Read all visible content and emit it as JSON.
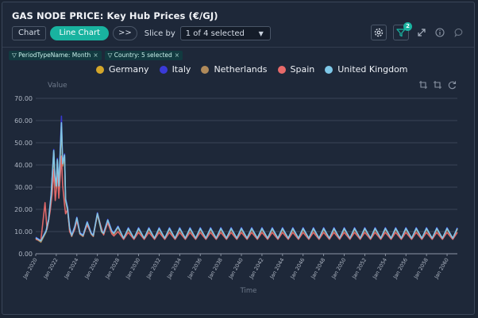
{
  "header": {
    "title": "GAS NODE PRICE: Key Hub Prices (€/GJ)"
  },
  "toolbar": {
    "chart_label": "Chart",
    "line_chart_label": "Line Chart",
    "expand_label": ">>",
    "slice_label": "Slice by",
    "slice_value": "1 of 4 selected",
    "filter_badge": "2"
  },
  "filters": [
    {
      "label": "PeriodTypeName: Month"
    },
    {
      "label": "Country: 5 selected"
    }
  ],
  "icons": {
    "settings": "gear-icon",
    "filter": "filter-icon",
    "expand": "expand-icon",
    "info": "info-icon",
    "comment": "comment-icon",
    "crop": "crop-icon",
    "crop_alt": "crop-alt-icon",
    "reset": "reset-icon"
  },
  "colors": {
    "background": "#1e2839",
    "accent": "#19b3a0",
    "grid": "#8a94a4"
  },
  "chart_data": {
    "type": "line",
    "ylabel": "Value",
    "xlabel": "Time",
    "ylim": [
      0,
      70
    ],
    "yticks": [
      "0.00",
      "10.00",
      "20.00",
      "30.00",
      "40.00",
      "50.00",
      "60.00",
      "70.00"
    ],
    "xlim": [
      2020,
      2061
    ],
    "xticks": [
      "Jan 2020",
      "Jan 2022",
      "Jan 2024",
      "Jan 2026",
      "Jan 2028",
      "Jan 2030",
      "Jan 2032",
      "Jan 2034",
      "Jan 2036",
      "Jan 2038",
      "Jan 2040",
      "Jan 2042",
      "Jan 2044",
      "Jan 2046",
      "Jan 2048",
      "Jan 2050",
      "Jan 2052",
      "Jan 2054",
      "Jan 2056",
      "Jan 2058",
      "Jan 2060"
    ],
    "grid": true,
    "legend_position": "top",
    "series": [
      {
        "name": "Germany",
        "color": "#d4a62a",
        "early_points": [
          [
            2020,
            7.0
          ],
          [
            2020.5,
            5.5
          ],
          [
            2021.0,
            10.0
          ],
          [
            2021.25,
            15.0
          ],
          [
            2021.5,
            26.0
          ],
          [
            2021.6,
            34.0
          ],
          [
            2021.75,
            46.0
          ],
          [
            2021.85,
            35.0
          ],
          [
            2022.0,
            30.0
          ],
          [
            2022.1,
            42.0
          ],
          [
            2022.25,
            30.0
          ],
          [
            2022.5,
            58.0
          ],
          [
            2022.62,
            40.0
          ],
          [
            2022.8,
            44.0
          ],
          [
            2022.9,
            24.0
          ],
          [
            2023.1,
            20.0
          ],
          [
            2023.3,
            11.0
          ],
          [
            2023.5,
            8.0
          ],
          [
            2023.8,
            12.0
          ],
          [
            2024.0,
            16.0
          ],
          [
            2024.3,
            9.0
          ],
          [
            2024.6,
            8.0
          ],
          [
            2025.0,
            14.0
          ],
          [
            2025.4,
            9.0
          ],
          [
            2025.6,
            8.0
          ],
          [
            2026.0,
            18.0
          ],
          [
            2026.4,
            10.0
          ],
          [
            2026.6,
            9.0
          ],
          [
            2027.0,
            15.0
          ],
          [
            2027.4,
            10.0
          ],
          [
            2027.6,
            9.0
          ],
          [
            2028.0,
            12.0
          ]
        ],
        "seasonal": {
          "from": 2028,
          "to": 2061,
          "winter_peak": 11.3,
          "summer_trough": 6.9
        }
      },
      {
        "name": "Italy",
        "color": "#3a3ad8",
        "early_points": [
          [
            2020,
            7.5
          ],
          [
            2020.5,
            6.0
          ],
          [
            2021.0,
            10.5
          ],
          [
            2021.25,
            15.5
          ],
          [
            2021.5,
            27.0
          ],
          [
            2021.6,
            35.0
          ],
          [
            2021.75,
            47.0
          ],
          [
            2021.85,
            36.0
          ],
          [
            2022.0,
            31.0
          ],
          [
            2022.1,
            43.0
          ],
          [
            2022.25,
            31.0
          ],
          [
            2022.5,
            62.0
          ],
          [
            2022.62,
            41.0
          ],
          [
            2022.8,
            45.0
          ],
          [
            2022.9,
            25.0
          ],
          [
            2023.1,
            21.0
          ],
          [
            2023.3,
            12.0
          ],
          [
            2023.5,
            8.5
          ],
          [
            2023.8,
            12.5
          ],
          [
            2024.0,
            16.5
          ],
          [
            2024.3,
            9.5
          ],
          [
            2024.6,
            8.5
          ],
          [
            2025.0,
            14.5
          ],
          [
            2025.4,
            9.5
          ],
          [
            2025.6,
            8.5
          ],
          [
            2026.0,
            18.5
          ],
          [
            2026.4,
            10.5
          ],
          [
            2026.6,
            9.5
          ],
          [
            2027.0,
            15.5
          ],
          [
            2027.4,
            10.5
          ],
          [
            2027.6,
            9.5
          ],
          [
            2028.0,
            12.5
          ]
        ],
        "seasonal": {
          "from": 2028,
          "to": 2061,
          "winter_peak": 11.8,
          "summer_trough": 6.8
        }
      },
      {
        "name": "Netherlands",
        "color": "#b08a5a",
        "early_points": [
          [
            2020,
            6.8
          ],
          [
            2020.5,
            5.2
          ],
          [
            2021.0,
            9.8
          ],
          [
            2021.25,
            14.8
          ],
          [
            2021.5,
            25.5
          ],
          [
            2021.6,
            33.5
          ],
          [
            2021.75,
            45.5
          ],
          [
            2021.85,
            34.5
          ],
          [
            2022.0,
            29.5
          ],
          [
            2022.1,
            41.5
          ],
          [
            2022.25,
            29.5
          ],
          [
            2022.5,
            57.0
          ],
          [
            2022.62,
            39.5
          ],
          [
            2022.8,
            43.5
          ],
          [
            2022.9,
            23.5
          ],
          [
            2023.1,
            19.5
          ],
          [
            2023.3,
            10.8
          ],
          [
            2023.5,
            7.8
          ],
          [
            2023.8,
            11.8
          ],
          [
            2024.0,
            15.8
          ],
          [
            2024.3,
            8.8
          ],
          [
            2024.6,
            7.8
          ],
          [
            2025.0,
            13.8
          ],
          [
            2025.4,
            8.8
          ],
          [
            2025.6,
            7.8
          ],
          [
            2026.0,
            17.8
          ],
          [
            2026.4,
            9.8
          ],
          [
            2026.6,
            8.8
          ],
          [
            2027.0,
            14.8
          ],
          [
            2027.4,
            9.8
          ],
          [
            2027.6,
            8.8
          ],
          [
            2028.0,
            11.8
          ]
        ],
        "seasonal": {
          "from": 2028,
          "to": 2061,
          "winter_peak": 11.0,
          "summer_trough": 6.8
        }
      },
      {
        "name": "Spain",
        "color": "#e86a6a",
        "early_points": [
          [
            2020,
            6.5
          ],
          [
            2020.5,
            6.0
          ],
          [
            2020.9,
            23.0
          ],
          [
            2021.1,
            11.0
          ],
          [
            2021.4,
            19.0
          ],
          [
            2021.6,
            27.0
          ],
          [
            2021.75,
            38.0
          ],
          [
            2021.9,
            24.0
          ],
          [
            2022.0,
            29.0
          ],
          [
            2022.1,
            38.0
          ],
          [
            2022.25,
            25.0
          ],
          [
            2022.5,
            44.0
          ],
          [
            2022.62,
            31.0
          ],
          [
            2022.8,
            22.0
          ],
          [
            2022.9,
            18.0
          ],
          [
            2023.1,
            20.0
          ],
          [
            2023.3,
            10.0
          ],
          [
            2023.5,
            8.0
          ],
          [
            2023.8,
            11.0
          ],
          [
            2024.0,
            15.0
          ],
          [
            2024.3,
            9.0
          ],
          [
            2024.6,
            8.0
          ],
          [
            2025.0,
            13.0
          ],
          [
            2025.4,
            9.0
          ],
          [
            2025.6,
            8.0
          ],
          [
            2026.0,
            18.0
          ],
          [
            2026.3,
            13.0
          ],
          [
            2026.6,
            8.5
          ],
          [
            2027.0,
            14.0
          ],
          [
            2027.4,
            9.0
          ],
          [
            2027.6,
            8.0
          ],
          [
            2028.0,
            10.0
          ]
        ],
        "seasonal": {
          "from": 2028,
          "to": 2061,
          "winter_peak": 9.6,
          "summer_trough": 6.5
        }
      },
      {
        "name": "United Kingdom",
        "color": "#7ec8e8",
        "early_points": [
          [
            2020,
            7.2
          ],
          [
            2020.5,
            5.8
          ],
          [
            2021.0,
            10.2
          ],
          [
            2021.25,
            15.2
          ],
          [
            2021.5,
            26.5
          ],
          [
            2021.6,
            34.5
          ],
          [
            2021.75,
            46.5
          ],
          [
            2021.85,
            35.5
          ],
          [
            2022.0,
            30.5
          ],
          [
            2022.1,
            42.5
          ],
          [
            2022.25,
            30.5
          ],
          [
            2022.5,
            59.0
          ],
          [
            2022.62,
            40.5
          ],
          [
            2022.8,
            44.5
          ],
          [
            2022.9,
            24.5
          ],
          [
            2023.1,
            20.5
          ],
          [
            2023.3,
            11.5
          ],
          [
            2023.5,
            8.2
          ],
          [
            2023.8,
            12.2
          ],
          [
            2024.0,
            16.2
          ],
          [
            2024.3,
            9.2
          ],
          [
            2024.6,
            8.2
          ],
          [
            2025.0,
            14.2
          ],
          [
            2025.4,
            9.2
          ],
          [
            2025.6,
            8.2
          ],
          [
            2026.0,
            18.2
          ],
          [
            2026.4,
            10.2
          ],
          [
            2026.6,
            9.2
          ],
          [
            2027.0,
            15.2
          ],
          [
            2027.4,
            10.2
          ],
          [
            2027.6,
            9.2
          ],
          [
            2028.0,
            12.2
          ]
        ],
        "seasonal": {
          "from": 2028,
          "to": 2061,
          "winter_peak": 11.5,
          "summer_trough": 7.0
        }
      }
    ]
  }
}
